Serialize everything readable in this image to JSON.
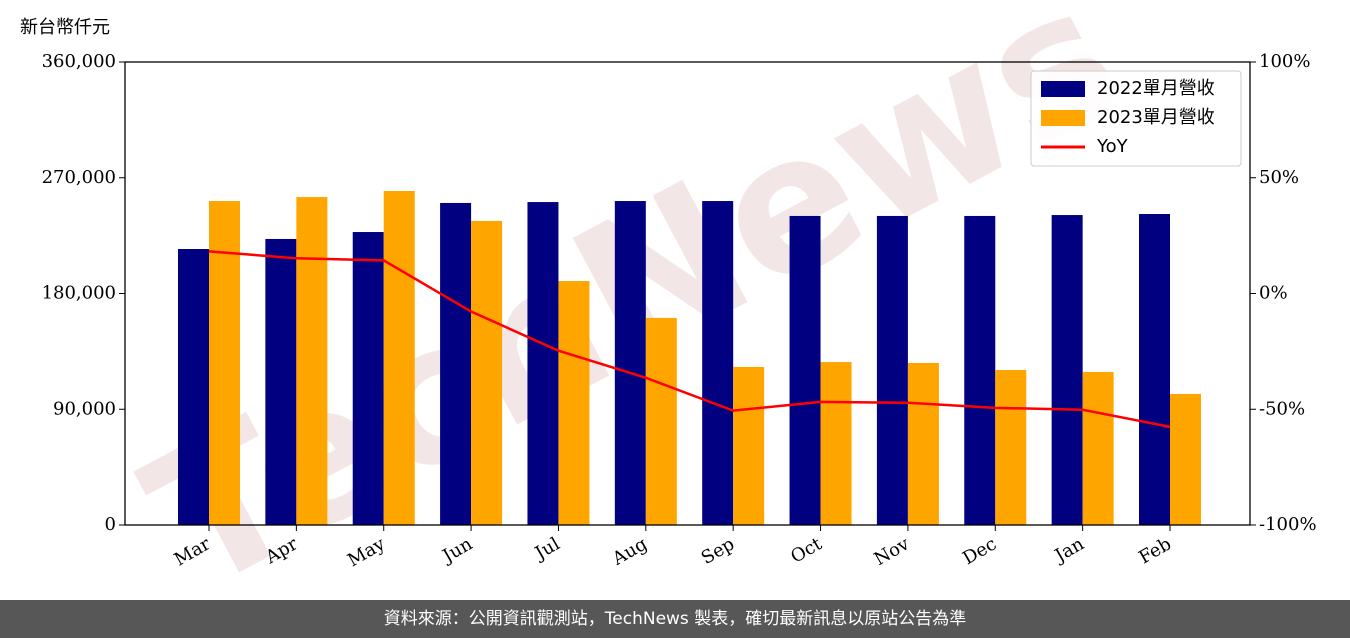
{
  "chart_data": {
    "type": "bar-line",
    "y_label": "新台幣仟元",
    "watermark": "TechNews",
    "footer": "資料來源：公開資訊觀測站，TechNews 製表，確切最新訊息以原站公告為準",
    "categories": [
      "Mar",
      "Apr",
      "May",
      "Jun",
      "Jul",
      "Aug",
      "Sep",
      "Oct",
      "Nov",
      "Dec",
      "Jan",
      "Feb"
    ],
    "series": [
      {
        "name": "2022單月營收",
        "color": "#000080",
        "kind": "bar",
        "values": [
          214600,
          222400,
          227800,
          250400,
          251100,
          251900,
          251900,
          240300,
          240300,
          240300,
          241000,
          241800
        ]
      },
      {
        "name": "2023單月營收",
        "color": "#ffa500",
        "kind": "bar",
        "values": [
          251900,
          255000,
          259700,
          236400,
          189700,
          161000,
          122900,
          126700,
          126000,
          120500,
          119000,
          101900
        ]
      },
      {
        "name": "YoY",
        "color": "#ff0000",
        "kind": "line",
        "axis": "y2",
        "values": [
          18.2,
          15.2,
          14.3,
          -7.8,
          -24.7,
          -36.4,
          -50.6,
          -46.8,
          -47.2,
          -49.4,
          -50.2,
          -57.6
        ]
      }
    ],
    "ylim": [
      0,
      360000
    ],
    "yticks": [
      0,
      {
        "value": 90000,
        "label": "90,000"
      },
      {
        "value": 180000,
        "label": "180,000"
      },
      {
        "value": 270000,
        "label": "270,000"
      },
      {
        "value": 360000,
        "label": "360,000"
      }
    ],
    "y2lim": [
      -100,
      100
    ],
    "y2ticks": [
      {
        "value": -100,
        "label": "-100%"
      },
      {
        "value": -50,
        "label": "-50%"
      },
      {
        "value": 0,
        "label": "0%"
      },
      {
        "value": 50,
        "label": "50%"
      },
      {
        "value": 100,
        "label": "100%"
      }
    ],
    "legend": "upper right"
  }
}
